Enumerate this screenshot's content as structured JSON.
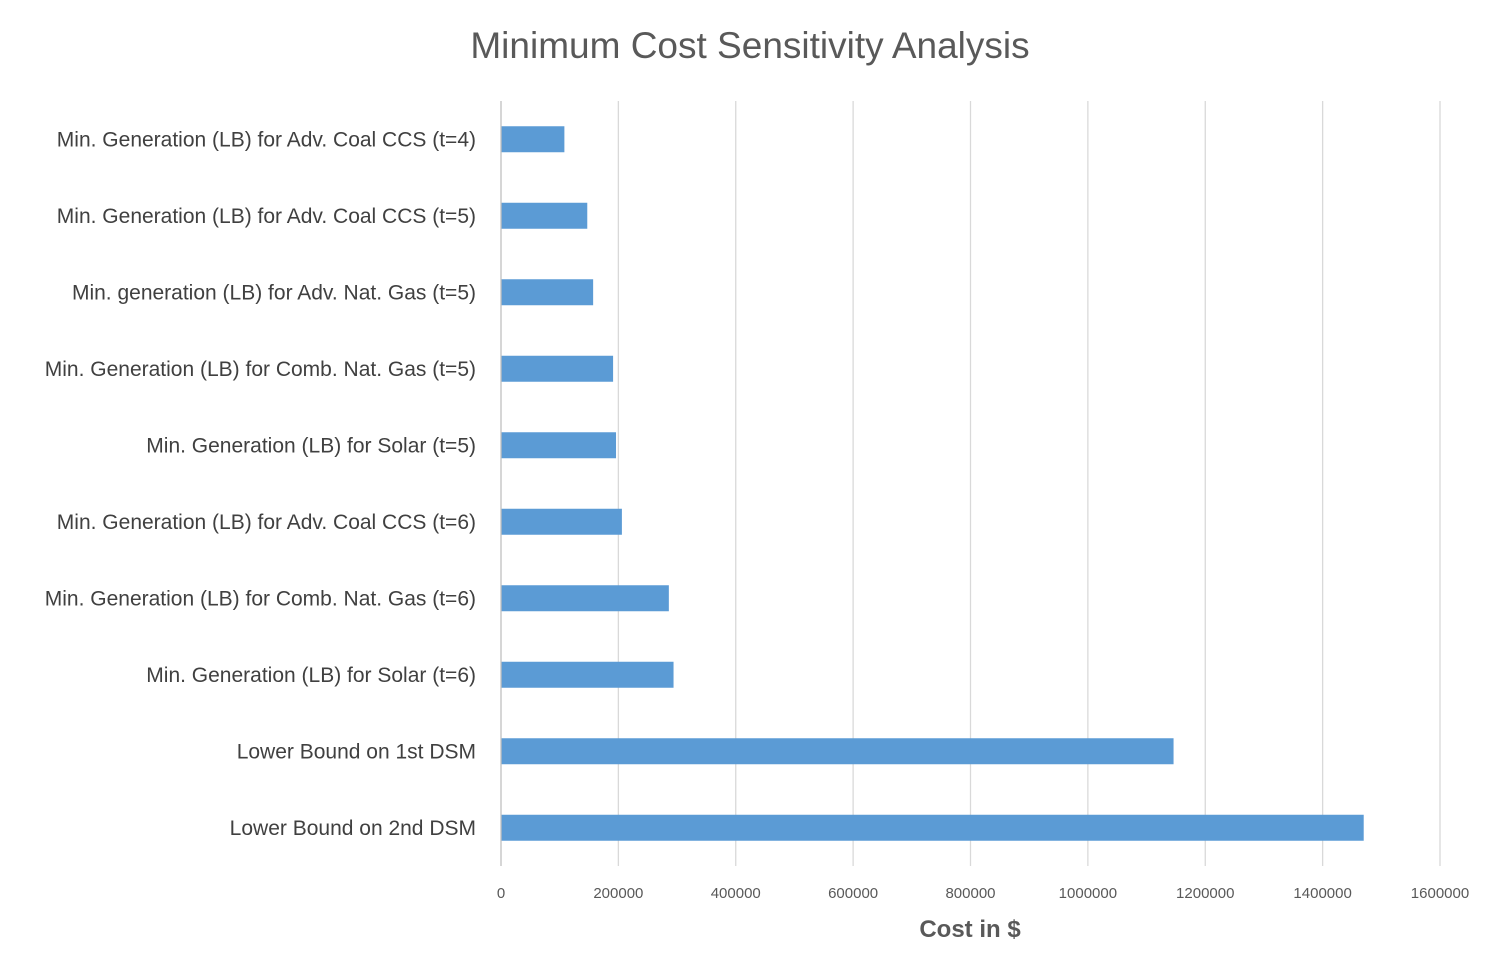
{
  "chart_data": {
    "type": "bar",
    "orientation": "horizontal",
    "title": "Minimum Cost Sensitivity Analysis",
    "xlabel": "Cost in $",
    "ylabel": "",
    "xlim": [
      0,
      1600000
    ],
    "xticks": [
      0,
      200000,
      400000,
      600000,
      800000,
      1000000,
      1200000,
      1400000,
      1600000
    ],
    "xtick_labels": [
      "0",
      "200000",
      "400000",
      "600000",
      "800000",
      "1000000",
      "1200000",
      "1400000",
      "1600000"
    ],
    "grid": "vertical",
    "legend": "none",
    "categories": [
      "Min. Generation (LB) for Adv. Coal CCS (t=4)",
      "Min. Generation (LB) for Adv. Coal CCS (t=5)",
      "Min. generation (LB) for Adv. Nat. Gas (t=5)",
      "Min. Generation (LB) for Comb. Nat. Gas (t=5)",
      "Min. Generation (LB) for Solar (t=5)",
      "Min. Generation (LB) for Adv. Coal CCS (t=6)",
      "Min. Generation (LB) for Comb. Nat. Gas (t=6)",
      "Min. Generation (LB) for Solar (t=6)",
      "Lower Bound on 1st DSM ",
      "Lower Bound on 2nd DSM "
    ],
    "values": [
      108000,
      147000,
      157000,
      191000,
      196000,
      206000,
      286000,
      294000,
      1146000,
      1470000
    ],
    "colors": {
      "bar": "#5B9BD5",
      "grid": "#D9D9D9",
      "axis": "#BFBFBF"
    }
  }
}
